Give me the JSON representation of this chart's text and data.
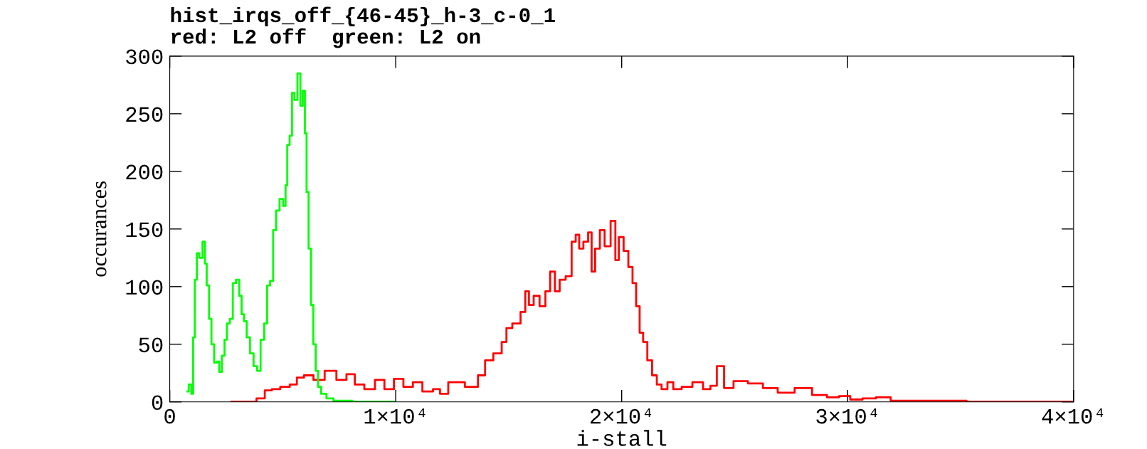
{
  "chart_data": {
    "type": "step",
    "title": "hist_irqs_off_{46-45}_h-3_c-0_1",
    "subtitle": "red: L2 off  green: L2 on",
    "xlabel": "i-stall",
    "ylabel": "occurances",
    "xlim": [
      0,
      40000
    ],
    "ylim": [
      0,
      300
    ],
    "xticks": [
      0,
      {
        "value": 10000,
        "label": "1×10⁴"
      },
      {
        "value": 20000,
        "label": "2×10⁴"
      },
      {
        "value": 30000,
        "label": "3×10⁴"
      },
      {
        "value": 40000,
        "label": "4×10⁴"
      }
    ],
    "yticks": [
      0,
      50,
      100,
      150,
      200,
      250,
      300
    ],
    "grid": false,
    "marker": "none",
    "line_style": "solid",
    "series": [
      {
        "color": "#ff0000",
        "x": [
          2740,
          3630,
          4050,
          4360,
          4680,
          5100,
          5520,
          5730,
          6150,
          6570,
          7140,
          7610,
          8030,
          8350,
          8870,
          9290,
          9710,
          10130,
          10550,
          10970,
          11390,
          11910,
          12010,
          12640,
          13480,
          13800,
          14110,
          14530,
          14850,
          14950,
          15370,
          15680,
          15790,
          16000,
          16210,
          16520,
          16730,
          16940,
          17150,
          17360,
          17680,
          17890,
          18040,
          18200,
          18410,
          18620,
          18720,
          18930,
          19140,
          19350,
          19670,
          19770,
          19980,
          20190,
          20400,
          20560,
          20720,
          20870,
          21030,
          21240,
          21450,
          21660,
          21870,
          22180,
          22390,
          22920,
          23340,
          23860,
          24000,
          24420,
          24640,
          25260,
          25910,
          26590,
          27220,
          28090,
          28760,
          29410,
          29840,
          30390,
          30930,
          31580,
          32230,
          33100,
          34180,
          36350,
          38520,
          39930
        ],
        "values": [
          0,
          0,
          3,
          10,
          11,
          13,
          15,
          21,
          23,
          19,
          27,
          19,
          24,
          15,
          11,
          19,
          11,
          20,
          13,
          17,
          9,
          11,
          7,
          17,
          13,
          23,
          36,
          42,
          52,
          64,
          68,
          78,
          96,
          84,
          92,
          83,
          96,
          113,
          96,
          106,
          109,
          139,
          145,
          133,
          139,
          147,
          113,
          133,
          149,
          135,
          157,
          123,
          143,
          131,
          117,
          103,
          83,
          60,
          52,
          36,
          23,
          15,
          11,
          17,
          11,
          13,
          17,
          11,
          14,
          31,
          12,
          18,
          16,
          12,
          8,
          12,
          6,
          4,
          5,
          2,
          3,
          4,
          1,
          1,
          1,
          0,
          0,
          0
        ]
      },
      {
        "color": "#00ff00",
        "x": [
          780,
          900,
          1010,
          1060,
          1160,
          1240,
          1370,
          1530,
          1580,
          1690,
          1790,
          1900,
          2030,
          2140,
          2240,
          2370,
          2480,
          2580,
          2740,
          2840,
          3020,
          3130,
          3230,
          3340,
          3470,
          3630,
          3790,
          3940,
          4100,
          4260,
          4360,
          4520,
          4630,
          4780,
          4940,
          5100,
          5150,
          5250,
          5360,
          5460,
          5570,
          5730,
          5830,
          5940,
          6020,
          6090,
          6200,
          6300,
          6410,
          6510,
          6620,
          6780,
          7090,
          7400,
          7820,
          8350,
          9920
        ],
        "values": [
          9,
          15,
          7,
          56,
          106,
          129,
          125,
          139,
          120,
          101,
          72,
          50,
          34,
          35,
          26,
          40,
          54,
          68,
          72,
          103,
          106,
          92,
          76,
          70,
          56,
          42,
          31,
          27,
          54,
          68,
          101,
          105,
          149,
          166,
          176,
          170,
          188,
          223,
          231,
          268,
          262,
          285,
          257,
          270,
          233,
          182,
          133,
          84,
          50,
          27,
          13,
          7,
          3,
          1,
          1,
          0,
          0
        ]
      }
    ]
  }
}
